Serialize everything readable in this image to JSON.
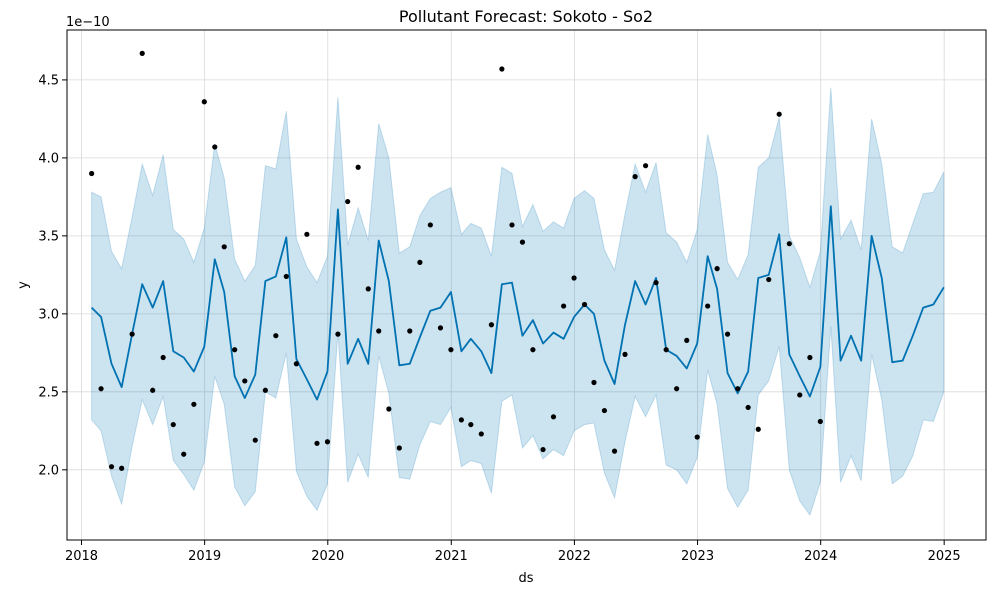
{
  "chart_data": {
    "type": "line",
    "title": "Pollutant Forecast: Sokoto - So2",
    "xlabel": "ds",
    "ylabel": "y",
    "y_exponent_label": "1e−10",
    "y_scale": 1e-10,
    "xlim": [
      "2017-11-19",
      "2025-05-05"
    ],
    "ylim": [
      1.55,
      4.82
    ],
    "grid": true,
    "x_ticks": [
      "2018",
      "2019",
      "2020",
      "2021",
      "2022",
      "2023",
      "2024",
      "2025"
    ],
    "y_ticks": [
      "2.0",
      "2.5",
      "3.0",
      "3.5",
      "4.0",
      "4.5"
    ],
    "colors": {
      "forecast": "#0072B2",
      "interval": "#0072B2",
      "observed": "#000000"
    },
    "forecast": {
      "x": [
        "2018-01-31",
        "2018-02-28",
        "2018-03-31",
        "2018-04-30",
        "2018-05-31",
        "2018-06-30",
        "2018-07-31",
        "2018-08-31",
        "2018-09-30",
        "2018-10-31",
        "2018-11-30",
        "2018-12-31",
        "2019-01-31",
        "2019-02-28",
        "2019-03-31",
        "2019-04-30",
        "2019-05-31",
        "2019-06-30",
        "2019-07-31",
        "2019-08-31",
        "2019-09-30",
        "2019-10-31",
        "2019-11-30",
        "2019-12-31",
        "2020-01-31",
        "2020-02-29",
        "2020-03-31",
        "2020-04-30",
        "2020-05-31",
        "2020-06-30",
        "2020-07-31",
        "2020-08-31",
        "2020-09-30",
        "2020-10-31",
        "2020-11-30",
        "2020-12-31",
        "2021-01-31",
        "2021-02-28",
        "2021-03-31",
        "2021-04-30",
        "2021-05-31",
        "2021-06-30",
        "2021-07-31",
        "2021-08-31",
        "2021-09-30",
        "2021-10-31",
        "2021-11-30",
        "2021-12-31",
        "2022-01-31",
        "2022-02-28",
        "2022-03-31",
        "2022-04-30",
        "2022-05-31",
        "2022-06-30",
        "2022-07-31",
        "2022-08-31",
        "2022-09-30",
        "2022-10-31",
        "2022-11-30",
        "2022-12-31",
        "2023-01-31",
        "2023-02-28",
        "2023-03-31",
        "2023-04-30",
        "2023-05-31",
        "2023-06-30",
        "2023-07-31",
        "2023-08-31",
        "2023-09-30",
        "2023-10-31",
        "2023-11-30",
        "2023-12-31",
        "2024-01-31",
        "2024-02-29",
        "2024-03-31",
        "2024-04-30",
        "2024-05-31",
        "2024-06-30",
        "2024-07-31",
        "2024-08-31",
        "2024-09-30",
        "2024-10-31",
        "2024-11-30",
        "2024-12-31"
      ],
      "yhat": [
        3.04,
        2.98,
        2.68,
        2.53,
        2.87,
        3.19,
        3.04,
        3.21,
        2.76,
        2.72,
        2.63,
        2.79,
        3.35,
        3.14,
        2.6,
        2.46,
        2.61,
        3.21,
        3.24,
        3.49,
        2.71,
        2.58,
        2.45,
        2.63,
        3.67,
        2.68,
        2.84,
        2.68,
        3.47,
        3.21,
        2.67,
        2.68,
        2.85,
        3.02,
        3.04,
        3.14,
        2.76,
        2.84,
        2.76,
        2.62,
        3.19,
        3.2,
        2.86,
        2.96,
        2.81,
        2.88,
        2.84,
        2.98,
        3.06,
        3.0,
        2.7,
        2.55,
        2.93,
        3.21,
        3.06,
        3.23,
        2.77,
        2.73,
        2.65,
        2.81,
        3.37,
        3.16,
        2.62,
        2.49,
        2.63,
        3.23,
        3.25,
        3.51,
        2.74,
        2.6,
        2.47,
        2.66,
        3.69,
        2.7,
        2.86,
        2.7,
        3.5,
        3.23,
        2.69,
        2.7,
        2.86,
        3.04,
        3.06,
        3.17
      ],
      "yhat_upper": [
        3.78,
        3.75,
        3.4,
        3.29,
        3.62,
        3.96,
        3.76,
        4.02,
        3.54,
        3.48,
        3.33,
        3.55,
        4.09,
        3.87,
        3.35,
        3.21,
        3.31,
        3.95,
        3.93,
        4.3,
        3.48,
        3.3,
        3.2,
        3.37,
        4.39,
        3.44,
        3.68,
        3.47,
        4.22,
        4.0,
        3.39,
        3.43,
        3.63,
        3.74,
        3.78,
        3.81,
        3.51,
        3.58,
        3.55,
        3.37,
        3.94,
        3.9,
        3.56,
        3.7,
        3.53,
        3.59,
        3.55,
        3.74,
        3.79,
        3.74,
        3.41,
        3.28,
        3.64,
        3.96,
        3.78,
        3.97,
        3.52,
        3.46,
        3.33,
        3.54,
        4.15,
        3.89,
        3.33,
        3.22,
        3.38,
        3.94,
        4.0,
        4.26,
        3.5,
        3.36,
        3.17,
        3.4,
        4.45,
        3.48,
        3.6,
        3.41,
        4.25,
        3.96,
        3.43,
        3.39,
        3.58,
        3.77,
        3.78,
        3.91
      ],
      "yhat_lower": [
        2.32,
        2.25,
        1.96,
        1.78,
        2.15,
        2.45,
        2.29,
        2.47,
        2.06,
        1.97,
        1.87,
        2.05,
        2.6,
        2.42,
        1.89,
        1.77,
        1.86,
        2.5,
        2.46,
        2.75,
        1.99,
        1.83,
        1.74,
        1.91,
        2.88,
        1.92,
        2.1,
        1.95,
        2.73,
        2.49,
        1.95,
        1.94,
        2.16,
        2.31,
        2.29,
        2.4,
        2.02,
        2.06,
        2.04,
        1.85,
        2.44,
        2.48,
        2.14,
        2.22,
        2.07,
        2.13,
        2.09,
        2.25,
        2.29,
        2.3,
        1.98,
        1.82,
        2.18,
        2.47,
        2.34,
        2.48,
        2.03,
        2.0,
        1.91,
        2.08,
        2.64,
        2.42,
        1.88,
        1.76,
        1.87,
        2.48,
        2.57,
        2.79,
        2.0,
        1.8,
        1.71,
        1.92,
        2.92,
        1.92,
        2.09,
        1.93,
        2.74,
        2.45,
        1.91,
        1.96,
        2.09,
        2.32,
        2.31,
        2.5
      ]
    },
    "observed": {
      "x": [
        "2018-01-31",
        "2018-02-28",
        "2018-03-31",
        "2018-04-30",
        "2018-05-31",
        "2018-06-30",
        "2018-07-31",
        "2018-08-31",
        "2018-09-30",
        "2018-10-31",
        "2018-11-30",
        "2018-12-31",
        "2019-01-31",
        "2019-02-28",
        "2019-03-31",
        "2019-04-30",
        "2019-05-31",
        "2019-06-30",
        "2019-07-31",
        "2019-08-31",
        "2019-09-30",
        "2019-10-31",
        "2019-11-30",
        "2019-12-31",
        "2020-01-31",
        "2020-02-29",
        "2020-03-31",
        "2020-04-30",
        "2020-05-31",
        "2020-06-30",
        "2020-07-31",
        "2020-08-31",
        "2020-09-30",
        "2020-10-31",
        "2020-11-30",
        "2020-12-31",
        "2021-01-31",
        "2021-02-28",
        "2021-03-31",
        "2021-04-30",
        "2021-05-31",
        "2021-06-30",
        "2021-07-31",
        "2021-08-31",
        "2021-09-30",
        "2021-10-31",
        "2021-11-30",
        "2021-12-31",
        "2022-01-31",
        "2022-02-28",
        "2022-03-31",
        "2022-04-30",
        "2022-05-31",
        "2022-06-30",
        "2022-07-31",
        "2022-08-31",
        "2022-09-30",
        "2022-10-31",
        "2022-11-30",
        "2022-12-31",
        "2023-01-31",
        "2023-02-28",
        "2023-03-31",
        "2023-04-30",
        "2023-05-31",
        "2023-06-30",
        "2023-07-31",
        "2023-08-31",
        "2023-09-30",
        "2023-10-31",
        "2023-11-30",
        "2023-12-31"
      ],
      "y": [
        3.9,
        2.52,
        2.02,
        2.01,
        2.87,
        4.67,
        2.51,
        2.72,
        2.29,
        2.1,
        2.42,
        4.36,
        4.07,
        3.43,
        2.77,
        2.57,
        2.19,
        2.51,
        2.86,
        3.24,
        2.68,
        3.51,
        2.17,
        2.18,
        2.87,
        3.72,
        3.94,
        3.16,
        2.89,
        2.39,
        2.14,
        2.89,
        3.33,
        3.57,
        2.91,
        2.77,
        2.32,
        2.29,
        2.23,
        2.93,
        4.57,
        3.57,
        3.46,
        2.77,
        2.13,
        2.34,
        3.05,
        3.23,
        3.06,
        2.56,
        2.38,
        2.12,
        2.74,
        3.88,
        3.95,
        3.2,
        2.77,
        2.52,
        2.83,
        2.21,
        3.05,
        3.29,
        2.87,
        2.52,
        2.4,
        2.26,
        3.22,
        4.28,
        3.45,
        2.48,
        2.72,
        2.31
      ]
    }
  }
}
